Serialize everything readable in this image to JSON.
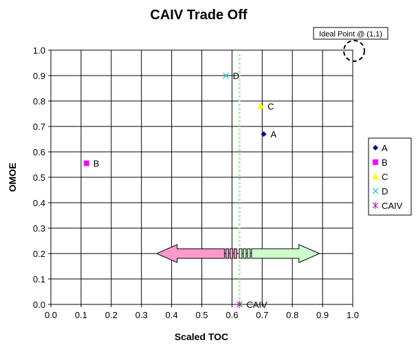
{
  "chart_data": {
    "type": "scatter",
    "title": "CAIV Trade Off",
    "xlabel": "Scaled TOC",
    "ylabel": "OMOE",
    "xlim": [
      0,
      1
    ],
    "ylim": [
      0,
      1
    ],
    "x_ticks": [
      "0.0",
      "0.1",
      "0.2",
      "0.3",
      "0.4",
      "0.5",
      "0.6",
      "0.7",
      "0.8",
      "0.9",
      "1.0"
    ],
    "y_ticks": [
      "0.0",
      "0.1",
      "0.2",
      "0.3",
      "0.4",
      "0.5",
      "0.6",
      "0.7",
      "0.8",
      "0.9",
      "1.0"
    ],
    "grid": true,
    "legend_position": "right",
    "series": [
      {
        "name": "A",
        "marker": "diamond",
        "color": "#000080",
        "x": 0.705,
        "y": 0.67,
        "label": "A"
      },
      {
        "name": "B",
        "marker": "square",
        "color": "#ff00ff",
        "x": 0.118,
        "y": 0.555,
        "label": "B"
      },
      {
        "name": "C",
        "marker": "triangle",
        "color": "#ffff00",
        "x": 0.695,
        "y": 0.78,
        "label": "C"
      },
      {
        "name": "D",
        "marker": "x",
        "color": "#33cccc",
        "x": 0.58,
        "y": 0.9,
        "label": "D"
      },
      {
        "name": "CAIV",
        "marker": "star",
        "color": "#993399",
        "x": 0.625,
        "y": 0.0,
        "label": "CAIV"
      }
    ],
    "caiv_line": {
      "x": 0.625,
      "color": "#b3e6b3"
    },
    "annotation": {
      "text": "Ideal Point @ (1,1)",
      "x": 1.0,
      "y": 1.0
    },
    "arrows": [
      {
        "direction": "left",
        "from": 0.575,
        "to": 0.35,
        "y": 0.2,
        "fill": "#ff99cc"
      },
      {
        "direction": "right",
        "from": 0.665,
        "to": 0.89,
        "y": 0.2,
        "fill": "#ccffcc"
      }
    ]
  }
}
